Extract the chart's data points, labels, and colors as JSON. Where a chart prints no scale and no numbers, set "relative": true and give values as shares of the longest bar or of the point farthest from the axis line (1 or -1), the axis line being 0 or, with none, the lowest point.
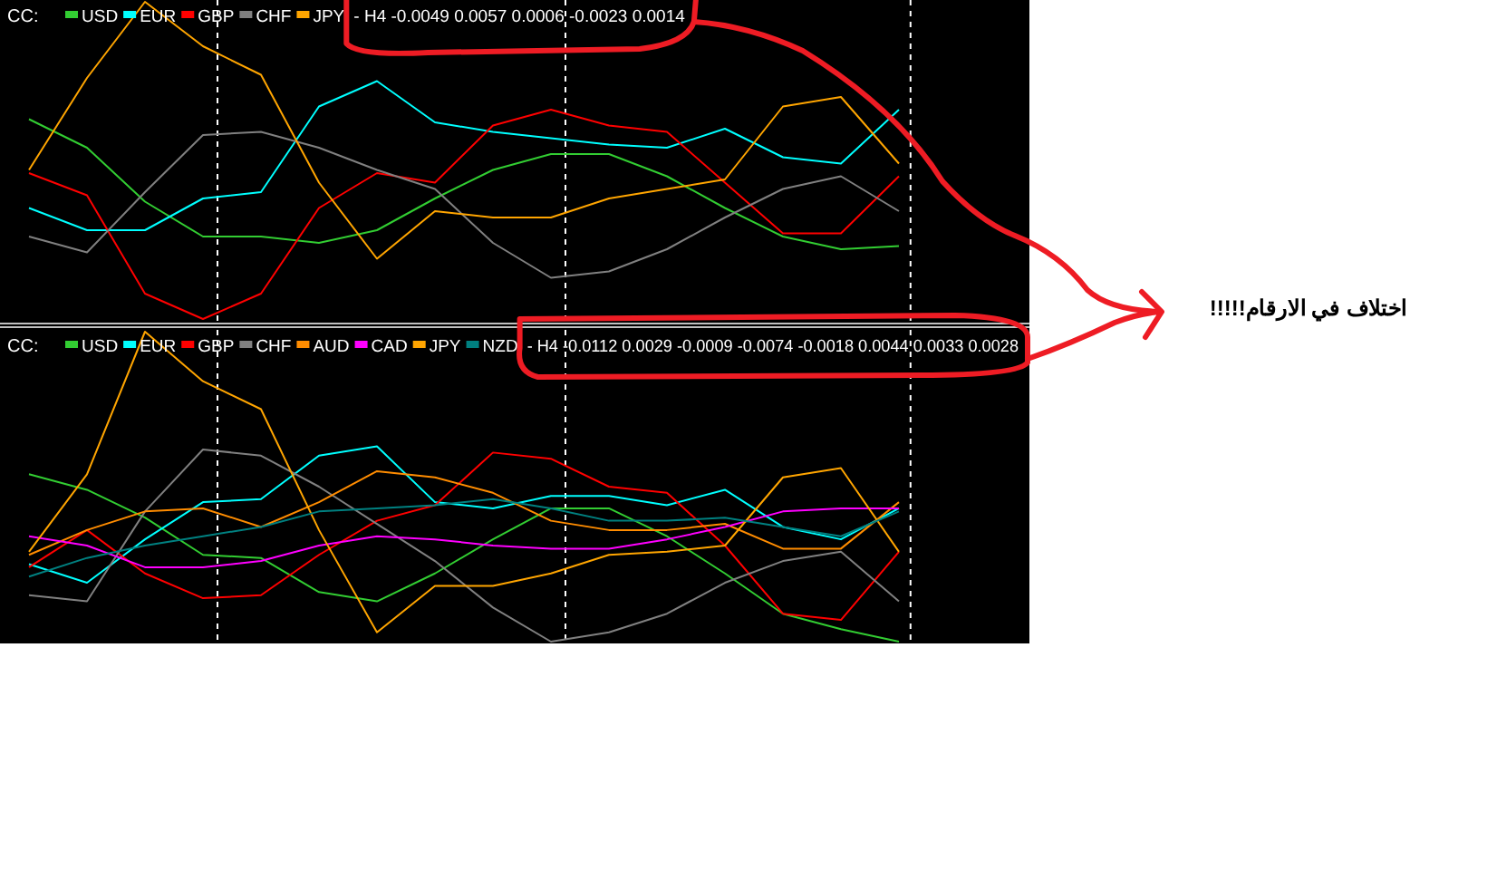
{
  "chart_data": [
    {
      "type": "line",
      "title": "CC:",
      "relative": true,
      "legend": "top left",
      "categories": [
        null,
        null,
        null,
        null,
        null,
        null,
        null,
        null,
        null,
        null,
        null,
        null,
        null,
        null,
        null,
        null
      ],
      "series": [
        {
          "name": "USD",
          "color": "#32cd32",
          "values": [
            0.63,
            0.54,
            0.37,
            0.26,
            0.26,
            0.24,
            0.28,
            0.38,
            0.47,
            0.52,
            0.52,
            0.45,
            0.35,
            0.26,
            0.22,
            0.23
          ]
        },
        {
          "name": "EUR",
          "color": "#00ffff",
          "values": [
            0.35,
            0.28,
            0.28,
            0.38,
            0.4,
            0.67,
            0.75,
            0.62,
            0.59,
            0.57,
            0.55,
            0.54,
            0.6,
            0.51,
            0.49,
            0.66
          ]
        },
        {
          "name": "GBP",
          "color": "#ff0000",
          "values": [
            0.46,
            0.39,
            0.08,
            0,
            0.08,
            0.35,
            0.46,
            0.43,
            0.61,
            0.66,
            0.61,
            0.59,
            0.43,
            0.27,
            0.27,
            0.45
          ]
        },
        {
          "name": "CHF",
          "color": "#808080",
          "values": [
            0.26,
            0.21,
            0.4,
            0.58,
            0.59,
            0.54,
            0.47,
            0.41,
            0.24,
            0.13,
            0.15,
            0.22,
            0.32,
            0.41,
            0.45,
            0.34
          ]
        },
        {
          "name": "JPY",
          "color": "#ffa500",
          "values": [
            0.47,
            0.76,
            1,
            0.86,
            0.77,
            0.43,
            0.19,
            0.34,
            0.32,
            0.32,
            0.38,
            0.41,
            0.44,
            0.67,
            0.7,
            0.49
          ]
        }
      ],
      "annotations": [
        "- H4 -0.0049 0.0057 0.0006 -0.0023 0.0014",
        "اختلاف في الارقام!!!!!"
      ]
    },
    {
      "type": "line",
      "title": "CC:",
      "relative": true,
      "legend": "top left",
      "categories": [
        null,
        null,
        null,
        null,
        null,
        null,
        null,
        null,
        null,
        null,
        null,
        null,
        null,
        null,
        null,
        null
      ],
      "series": [
        {
          "name": "USD",
          "color": "#32cd32",
          "values": [
            0.54,
            0.49,
            0.4,
            0.28,
            0.27,
            0.16,
            0.13,
            0.22,
            0.33,
            0.43,
            0.43,
            0.34,
            0.22,
            0.09,
            0.04,
            0
          ]
        },
        {
          "name": "EUR",
          "color": "#00ffff",
          "values": [
            0.25,
            0.19,
            0.33,
            0.45,
            0.46,
            0.6,
            0.63,
            0.45,
            0.43,
            0.47,
            0.47,
            0.44,
            0.49,
            0.37,
            0.33,
            0.43
          ]
        },
        {
          "name": "GBP",
          "color": "#ff0000",
          "values": [
            0.24,
            0.36,
            0.22,
            0.14,
            0.15,
            0.28,
            0.39,
            0.44,
            0.61,
            0.59,
            0.5,
            0.48,
            0.31,
            0.09,
            0.07,
            0.29
          ]
        },
        {
          "name": "CHF",
          "color": "#808080",
          "values": [
            0.15,
            0.13,
            0.42,
            0.62,
            0.6,
            0.5,
            0.38,
            0.26,
            0.11,
            0,
            0.03,
            0.09,
            0.19,
            0.26,
            0.29,
            0.13
          ]
        },
        {
          "name": "AUD",
          "color": "#ff8c00",
          "values": [
            0.28,
            0.36,
            0.42,
            0.43,
            0.37,
            0.45,
            0.55,
            0.53,
            0.48,
            0.39,
            0.36,
            0.36,
            0.38,
            0.3,
            0.3,
            0.45
          ]
        },
        {
          "name": "CAD",
          "color": "#ff00ff",
          "values": [
            0.34,
            0.31,
            0.24,
            0.24,
            0.26,
            0.31,
            0.34,
            0.33,
            0.31,
            0.3,
            0.3,
            0.33,
            0.37,
            0.42,
            0.43,
            0.43
          ]
        },
        {
          "name": "JPY",
          "color": "#ffa500",
          "values": [
            0.29,
            0.54,
            1,
            0.84,
            0.75,
            0.36,
            0.03,
            0.18,
            0.18,
            0.22,
            0.28,
            0.29,
            0.31,
            0.53,
            0.56,
            0.29
          ]
        },
        {
          "name": "NZD",
          "color": "#008080",
          "values": [
            0.21,
            0.27,
            0.31,
            0.34,
            0.37,
            0.42,
            0.43,
            0.44,
            0.46,
            0.43,
            0.39,
            0.39,
            0.4,
            0.37,
            0.34,
            0.42
          ]
        }
      ],
      "annotations": [
        "- H4 -0.0112 0.0029 -0.0009 -0.0074 -0.0018 0.0044 0.0033 0.0028"
      ]
    }
  ]
}
